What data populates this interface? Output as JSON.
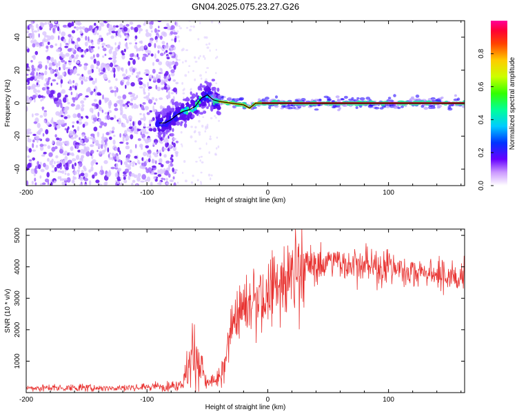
{
  "title": "GN04.2025.075.23.27.G26",
  "chart_data": [
    {
      "type": "heatmap",
      "xlabel": "Height of straight line (km)",
      "ylabel": "Frequency (Hz)",
      "xlim": [
        -200,
        163
      ],
      "ylim": [
        -50,
        50
      ],
      "xticks": [
        -200,
        -100,
        0,
        100
      ],
      "yticks": [
        -40,
        -20,
        0,
        20,
        40
      ],
      "grid": false,
      "colorbar": {
        "label": "Normalized spectral amplitude",
        "range": [
          0,
          1
        ],
        "ticks": [
          "0.0",
          "0.2",
          "0.4",
          "0.6",
          "0.8"
        ]
      },
      "ridge": {
        "x": [
          -85,
          -80,
          -75,
          -70,
          -65,
          -60,
          -55,
          -50,
          -45,
          -40,
          -30,
          -20,
          -15,
          -10,
          0,
          20,
          40,
          60,
          100,
          163
        ],
        "y": [
          -12,
          -10,
          -7,
          -5,
          -4,
          -2,
          3,
          5,
          2,
          1,
          0,
          -1,
          -3,
          0,
          0,
          0,
          0,
          0,
          0,
          0
        ]
      }
    },
    {
      "type": "line",
      "xlabel": "Height of straight line (km)",
      "ylabel": "SNR (10 * v/v)",
      "xlim": [
        -200,
        163
      ],
      "ylim": [
        0,
        5200
      ],
      "xticks": [
        -200,
        -100,
        0,
        100
      ],
      "yticks": [
        1000,
        2000,
        3000,
        4000,
        5000
      ],
      "grid": false,
      "color": "#e8312f",
      "series": [
        {
          "x": [
            -200,
            -180,
            -160,
            -140,
            -120,
            -100,
            -90,
            -80,
            -75,
            -70,
            -67,
            -64,
            -60,
            -56,
            -52,
            -48,
            -44,
            -40,
            -36,
            -32,
            -30,
            -28,
            -25,
            -22,
            -18,
            -14,
            -10,
            -6,
            -3,
            0,
            5,
            10,
            15,
            20,
            25,
            30,
            35,
            40,
            45,
            50,
            55,
            60,
            70,
            80,
            90,
            100,
            110,
            120,
            130,
            140,
            150,
            163
          ],
          "y": [
            150,
            150,
            150,
            150,
            150,
            180,
            200,
            220,
            250,
            300,
            700,
            1000,
            1200,
            900,
            400,
            300,
            350,
            450,
            700,
            1800,
            2300,
            2300,
            2500,
            2700,
            2600,
            2800,
            2900,
            3000,
            2800,
            3200,
            3400,
            3300,
            3500,
            3800,
            3800,
            4000,
            4100,
            4000,
            4100,
            4300,
            4100,
            4100,
            4100,
            4000,
            4000,
            4000,
            3950,
            3850,
            3800,
            3750,
            3700,
            3700
          ]
        }
      ]
    }
  ]
}
